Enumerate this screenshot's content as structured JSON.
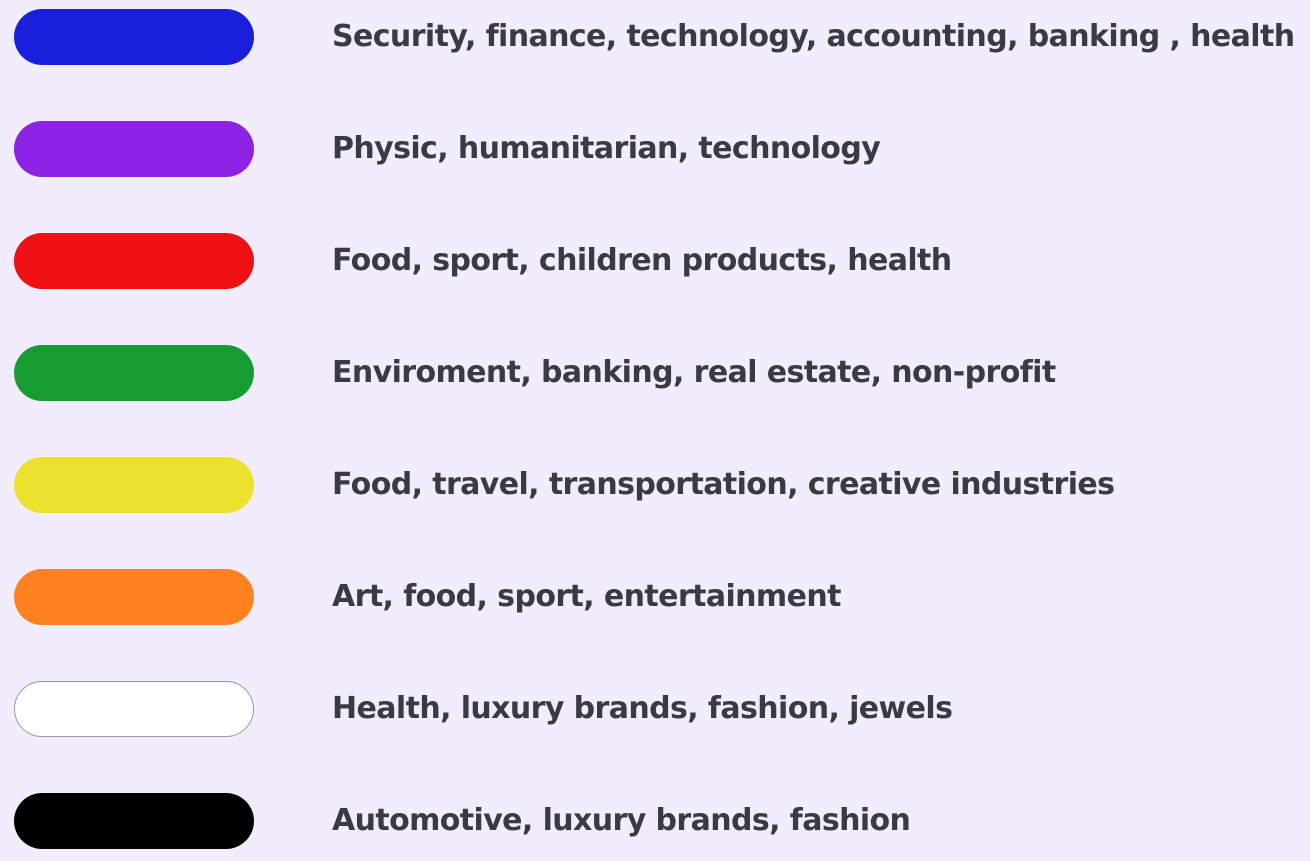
{
  "legend": {
    "items": [
      {
        "color": "#1a1fdc",
        "swatch_name": "blue",
        "text": "Security, finance, technology, accounting, banking , health"
      },
      {
        "color": "#8c22e3",
        "swatch_name": "purple",
        "text": "Physic, humanitarian, technology"
      },
      {
        "color": "#ef1014",
        "swatch_name": "red",
        "text": "Food, sport, children products, health"
      },
      {
        "color": "#169c31",
        "swatch_name": "green",
        "text": "Enviroment, banking, real estate, non-profit"
      },
      {
        "color": "#ece22e",
        "swatch_name": "yellow",
        "text": "Food, travel, transportation, creative industries"
      },
      {
        "color": "#ff8222",
        "swatch_name": "orange",
        "text": "Art, food, sport, entertainment"
      },
      {
        "color": "#ffffff",
        "swatch_name": "white",
        "text": "Health, luxury brands, fashion, jewels"
      },
      {
        "color": "#000000",
        "swatch_name": "black",
        "text": "Automotive, luxury brands, fashion"
      }
    ]
  }
}
